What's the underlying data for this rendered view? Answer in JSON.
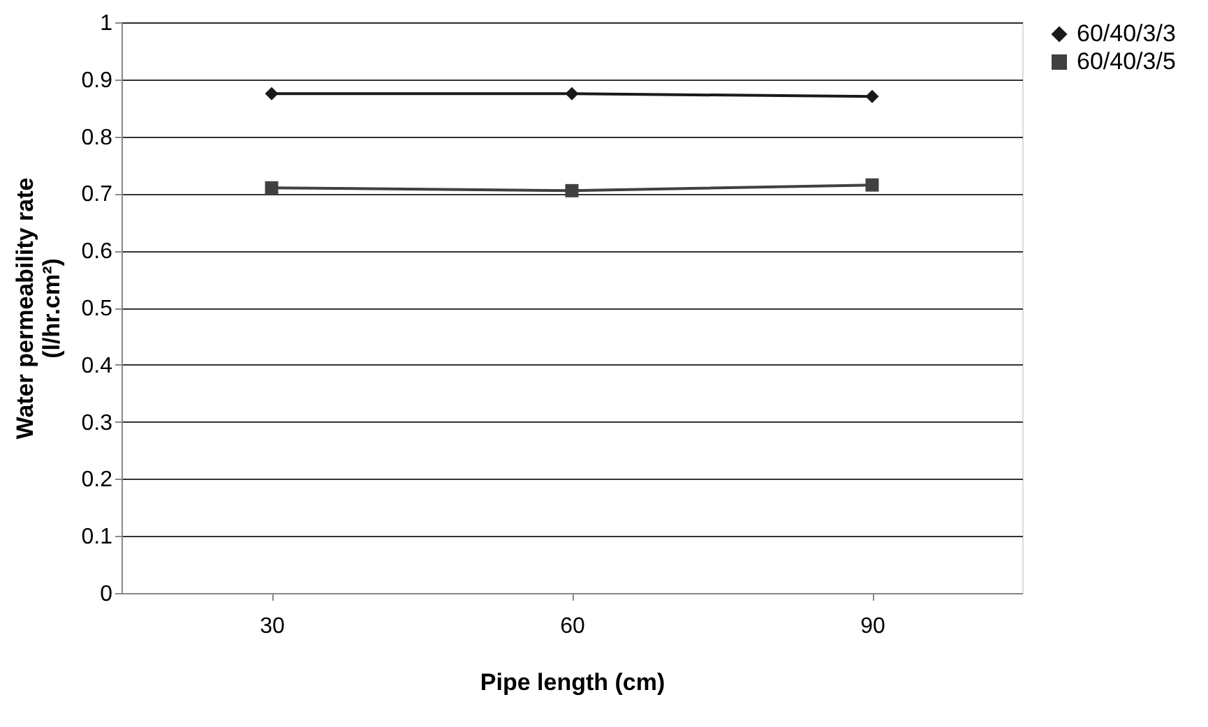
{
  "chart_data": {
    "type": "line",
    "xlabel": "Pipe length (cm)",
    "ylabel": "Water permeability rate\n(l/hr.cm²)",
    "categories": [
      "30",
      "60",
      "90"
    ],
    "series": [
      {
        "name": "60/40/3/3",
        "color": "#1a1a1a",
        "marker": "diamond",
        "values": [
          0.875,
          0.875,
          0.87
        ]
      },
      {
        "name": "60/40/3/5",
        "color": "#404040",
        "marker": "square",
        "values": [
          0.71,
          0.705,
          0.715
        ]
      }
    ],
    "ylim": [
      0,
      1
    ],
    "yticks": [
      0,
      0.1,
      0.2,
      0.3,
      0.4,
      0.5,
      0.6,
      0.7,
      0.8,
      0.9,
      1
    ],
    "grid": "y",
    "legend": "right",
    "line_style": "solid"
  }
}
